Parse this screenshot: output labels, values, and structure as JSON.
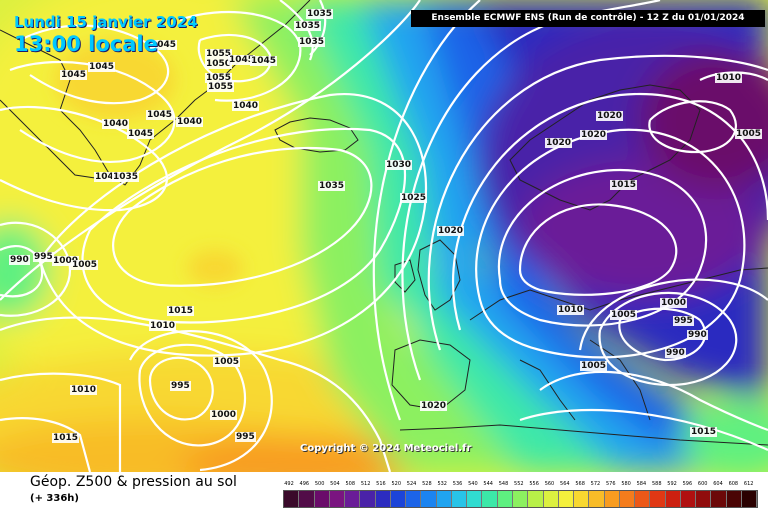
{
  "header": {
    "date": "Lundi 15 janvier 2024",
    "local_time": "13:00 locale",
    "run_info": "Ensemble ECMWF ENS  (Run de contrôle)  -  12 Z du 01/01/2024",
    "copyright": "Copyright © 2024 Meteociel.fr"
  },
  "footer": {
    "title": "Géop. Z500 & pression au sol",
    "forecast_offset": "(+ 336h)"
  },
  "legend": {
    "unit_note": "",
    "ticks": [
      "492",
      "496",
      "500",
      "504",
      "508",
      "512",
      "516",
      "520",
      "524",
      "528",
      "532",
      "536",
      "540",
      "544",
      "548",
      "552",
      "556",
      "560",
      "564",
      "568",
      "572",
      "576",
      "580",
      "584",
      "588",
      "592",
      "596",
      "600",
      "604",
      "608",
      "612"
    ],
    "colors": [
      "#3a0a2a",
      "#520c48",
      "#6a0c6a",
      "#7a1480",
      "#6a1c98",
      "#4a22a8",
      "#2c2cc0",
      "#1c44d8",
      "#1c64e8",
      "#1c84f0",
      "#20a4f0",
      "#28c4e8",
      "#30dcd0",
      "#3ce8a8",
      "#5ef080",
      "#8cf060",
      "#b8f048",
      "#dcf040",
      "#f4f03c",
      "#f8d830",
      "#f8bc28",
      "#f89c20",
      "#f47c1c",
      "#ec5818",
      "#e03814",
      "#cc2010",
      "#b01010",
      "#900c0c",
      "#6c0808",
      "#4a0404",
      "#2a0000"
    ]
  },
  "isobar_labels": [
    {
      "text": "1045"
    },
    {
      "text": "1045"
    },
    {
      "text": "1045"
    },
    {
      "text": "1045"
    },
    {
      "text": "1040"
    },
    {
      "text": "1045"
    },
    {
      "text": "1040"
    },
    {
      "text": "1040"
    },
    {
      "text": "1035"
    },
    {
      "text": "1055"
    },
    {
      "text": "1050"
    },
    {
      "text": "1045"
    },
    {
      "text": "1045"
    },
    {
      "text": "1055"
    },
    {
      "text": "1055"
    },
    {
      "text": "1040"
    },
    {
      "text": "1035"
    },
    {
      "text": "1035"
    },
    {
      "text": "1035"
    },
    {
      "text": "1035"
    },
    {
      "text": "1030"
    },
    {
      "text": "1025"
    },
    {
      "text": "1020"
    },
    {
      "text": "1020"
    },
    {
      "text": "1020"
    },
    {
      "text": "1020"
    },
    {
      "text": "1015"
    },
    {
      "text": "1010"
    },
    {
      "text": "1005"
    },
    {
      "text": "1000"
    },
    {
      "text": "995"
    },
    {
      "text": "990"
    },
    {
      "text": "990"
    },
    {
      "text": "1010"
    },
    {
      "text": "1005"
    },
    {
      "text": "1005"
    },
    {
      "text": "990"
    },
    {
      "text": "995"
    },
    {
      "text": "1000"
    },
    {
      "text": "1005"
    },
    {
      "text": "1015"
    },
    {
      "text": "1010"
    },
    {
      "text": "1005"
    },
    {
      "text": "995"
    },
    {
      "text": "1000"
    },
    {
      "text": "995"
    },
    {
      "text": "1010"
    },
    {
      "text": "1015"
    },
    {
      "text": "1020"
    },
    {
      "text": "1015"
    }
  ],
  "colors": {
    "isobar": "#ffffff",
    "coast": "#222222",
    "title_accent": "#00c8ff"
  }
}
